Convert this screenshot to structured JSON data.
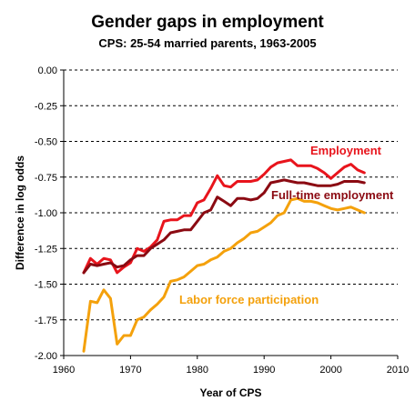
{
  "chart_data": {
    "type": "line",
    "title": "Gender gaps in employment",
    "subtitle": "CPS: 25-54 married parents, 1963-2005",
    "xlabel": "Year of CPS",
    "ylabel": "Difference in log odds",
    "xlim": [
      1960,
      2010
    ],
    "ylim": [
      -2.0,
      0.0
    ],
    "xticks": [
      1960,
      1970,
      1980,
      1990,
      2000,
      2010
    ],
    "yticks": [
      0.0,
      -0.25,
      -0.5,
      -0.75,
      -1.0,
      -1.25,
      -1.5,
      -1.75,
      -2.0
    ],
    "ytick_labels": [
      "0.00",
      "-0.25",
      "-0.50",
      "-0.75",
      "-1.00",
      "-1.25",
      "-1.50",
      "-1.75",
      "-2.00"
    ],
    "grid": "horizontal dashed",
    "series": [
      {
        "name": "Employment",
        "color": "#e8141c",
        "x": [
          1963,
          1964,
          1965,
          1966,
          1967,
          1968,
          1969,
          1970,
          1971,
          1972,
          1973,
          1974,
          1975,
          1976,
          1977,
          1978,
          1979,
          1980,
          1981,
          1982,
          1983,
          1984,
          1985,
          1986,
          1987,
          1988,
          1989,
          1990,
          1991,
          1992,
          1993,
          1994,
          1995,
          1996,
          1997,
          1998,
          1999,
          2000,
          2001,
          2002,
          2003,
          2004,
          2005
        ],
        "y": [
          -1.42,
          -1.32,
          -1.36,
          -1.32,
          -1.33,
          -1.42,
          -1.38,
          -1.35,
          -1.25,
          -1.27,
          -1.24,
          -1.19,
          -1.06,
          -1.05,
          -1.05,
          -1.02,
          -1.02,
          -0.93,
          -0.91,
          -0.83,
          -0.74,
          -0.81,
          -0.82,
          -0.78,
          -0.78,
          -0.78,
          -0.77,
          -0.73,
          -0.68,
          -0.65,
          -0.64,
          -0.63,
          -0.67,
          -0.67,
          -0.67,
          -0.69,
          -0.72,
          -0.76,
          -0.72,
          -0.68,
          -0.66,
          -0.7,
          -0.72
        ]
      },
      {
        "name": "Full-time employment",
        "color": "#8b0a12",
        "x": [
          1963,
          1964,
          1965,
          1966,
          1967,
          1968,
          1969,
          1970,
          1971,
          1972,
          1973,
          1974,
          1975,
          1976,
          1977,
          1978,
          1979,
          1980,
          1981,
          1982,
          1983,
          1984,
          1985,
          1986,
          1987,
          1988,
          1989,
          1990,
          1991,
          1992,
          1993,
          1994,
          1995,
          1996,
          1997,
          1998,
          1999,
          2000,
          2001,
          2002,
          2003,
          2004,
          2005
        ],
        "y": [
          -1.42,
          -1.36,
          -1.37,
          -1.36,
          -1.35,
          -1.38,
          -1.37,
          -1.33,
          -1.3,
          -1.3,
          -1.25,
          -1.22,
          -1.19,
          -1.14,
          -1.13,
          -1.12,
          -1.12,
          -1.06,
          -1.0,
          -0.98,
          -0.89,
          -0.92,
          -0.95,
          -0.9,
          -0.9,
          -0.91,
          -0.9,
          -0.86,
          -0.79,
          -0.78,
          -0.77,
          -0.78,
          -0.79,
          -0.79,
          -0.8,
          -0.81,
          -0.81,
          -0.81,
          -0.8,
          -0.78,
          -0.78,
          -0.78,
          -0.79
        ]
      },
      {
        "name": "Labor force participation",
        "color": "#f4a10c",
        "x": [
          1963,
          1964,
          1965,
          1966,
          1967,
          1968,
          1969,
          1970,
          1971,
          1972,
          1973,
          1974,
          1975,
          1976,
          1977,
          1978,
          1979,
          1980,
          1981,
          1982,
          1983,
          1984,
          1985,
          1986,
          1987,
          1988,
          1989,
          1990,
          1991,
          1992,
          1993,
          1994,
          1995,
          1996,
          1997,
          1998,
          1999,
          2000,
          2001,
          2002,
          2003,
          2004,
          2005
        ],
        "y": [
          -1.97,
          -1.62,
          -1.63,
          -1.54,
          -1.6,
          -1.92,
          -1.86,
          -1.86,
          -1.75,
          -1.73,
          -1.68,
          -1.64,
          -1.59,
          -1.48,
          -1.47,
          -1.45,
          -1.41,
          -1.37,
          -1.36,
          -1.33,
          -1.31,
          -1.27,
          -1.25,
          -1.21,
          -1.18,
          -1.14,
          -1.13,
          -1.1,
          -1.07,
          -1.02,
          -1.0,
          -0.91,
          -0.9,
          -0.92,
          -0.92,
          -0.93,
          -0.95,
          -0.97,
          -0.98,
          -0.97,
          -0.96,
          -0.98,
          -1.0
        ]
      }
    ]
  }
}
